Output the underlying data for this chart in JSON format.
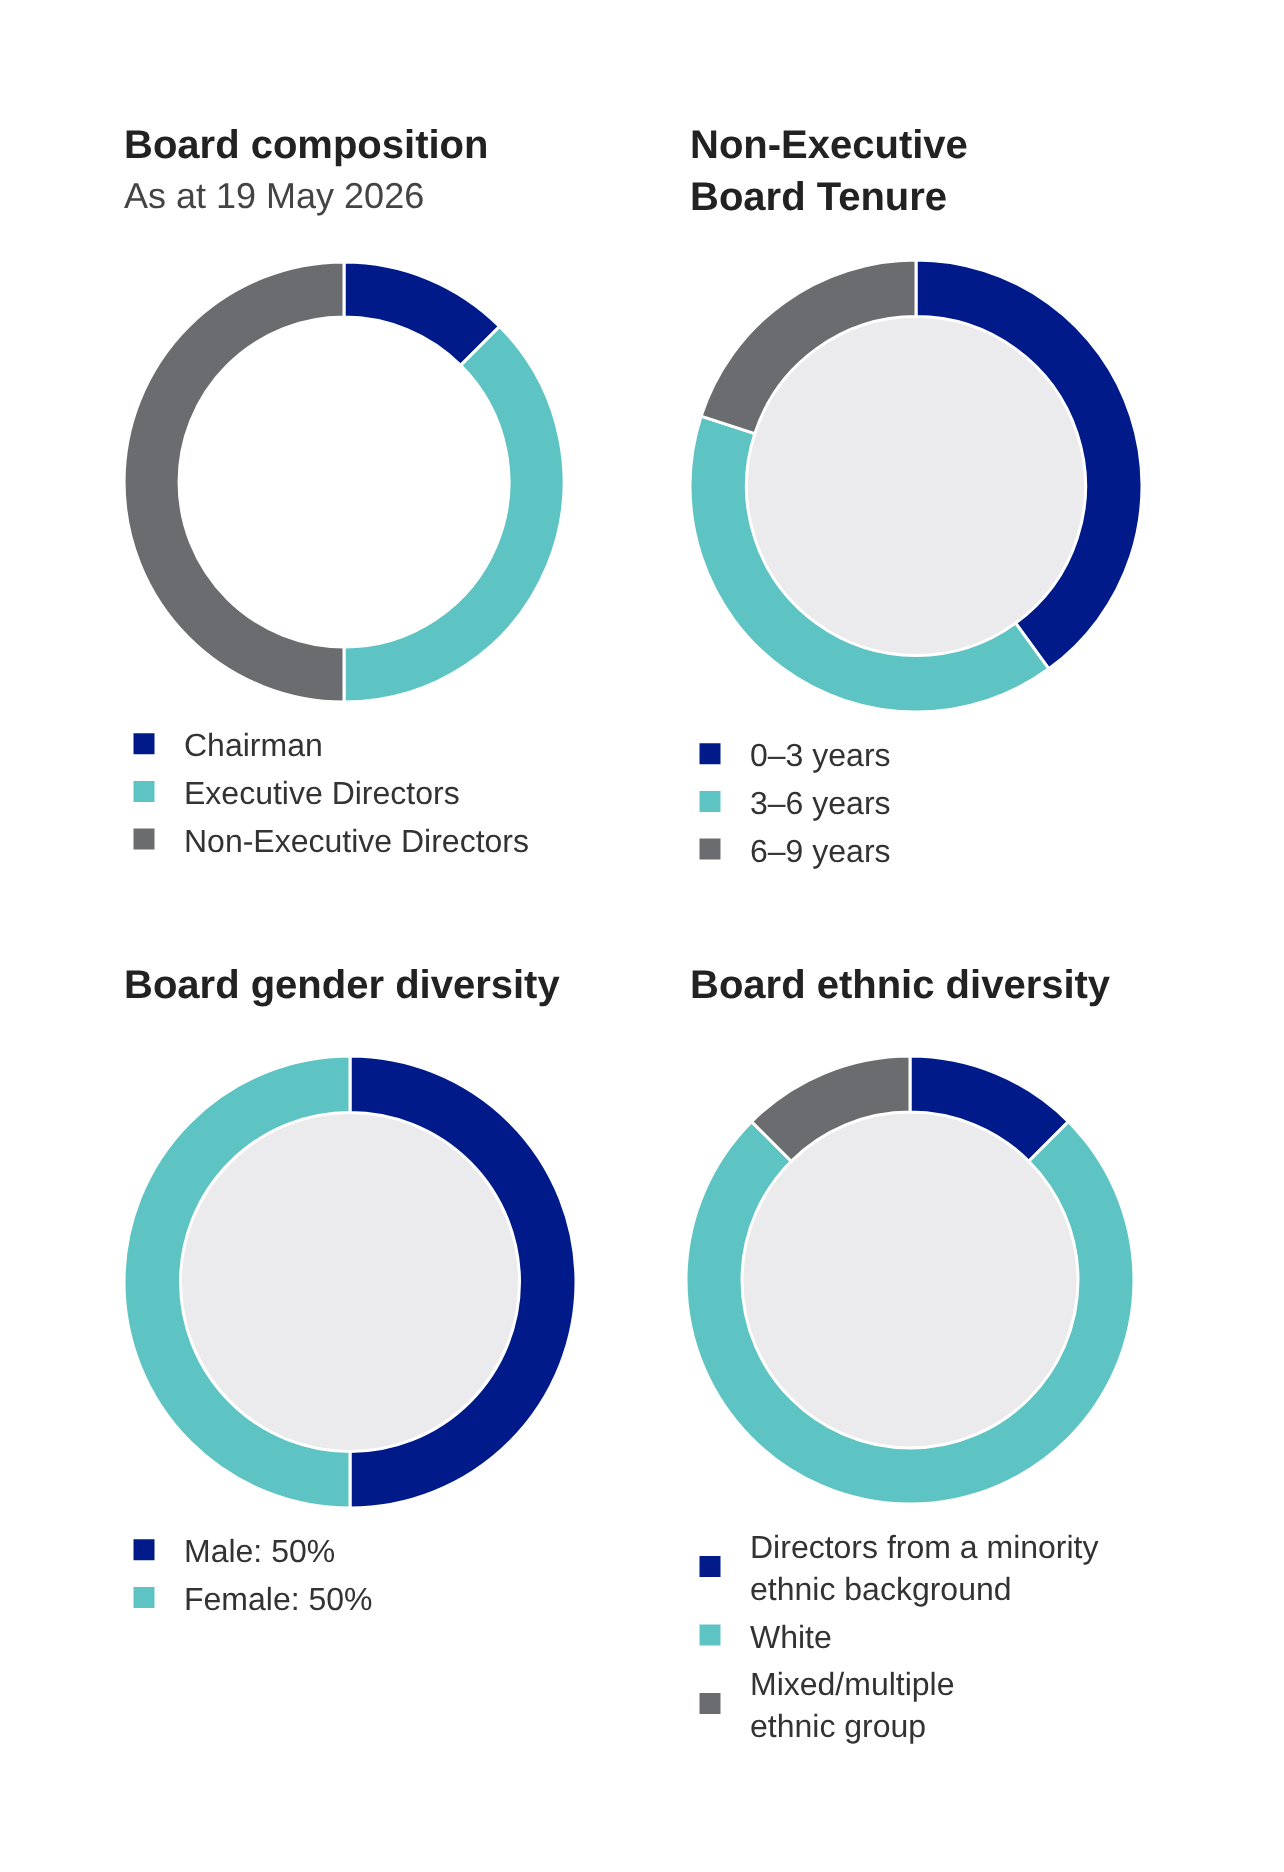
{
  "chart_data": [
    {
      "type": "donut",
      "title": "Board composition",
      "subtitle": "As at 19 May 2026",
      "categories": [
        "Chairman",
        "Executive Directors",
        "Non-Executive Directors"
      ],
      "values": [
        12.5,
        37.5,
        50
      ],
      "colors": [
        "#001a8a",
        "#5ec4c3",
        "#6b6c70"
      ],
      "legend": "bottom"
    },
    {
      "type": "donut",
      "title": "Non-Executive\nBoard Tenure",
      "categories": [
        "0–3 years",
        "3–6 years",
        "6–9 years"
      ],
      "values": [
        40,
        40,
        20
      ],
      "colors": [
        "#001a8a",
        "#5ec4c3",
        "#6b6c70"
      ],
      "legend": "bottom"
    },
    {
      "type": "donut",
      "title": "Board gender diversity",
      "categories": [
        "Male: 50%",
        "Female: 50%"
      ],
      "values": [
        50,
        50
      ],
      "colors": [
        "#001a8a",
        "#5ec4c3"
      ],
      "legend": "bottom"
    },
    {
      "type": "donut",
      "title": "Board ethnic diversity",
      "categories": [
        "Directors from a minority\nethnic background",
        "White",
        "Mixed/multiple\nethnic group"
      ],
      "values": [
        12.5,
        75,
        12.5
      ],
      "colors": [
        "#001a8a",
        "#5ec4c3",
        "#6b6c70"
      ],
      "legend": "bottom"
    }
  ]
}
